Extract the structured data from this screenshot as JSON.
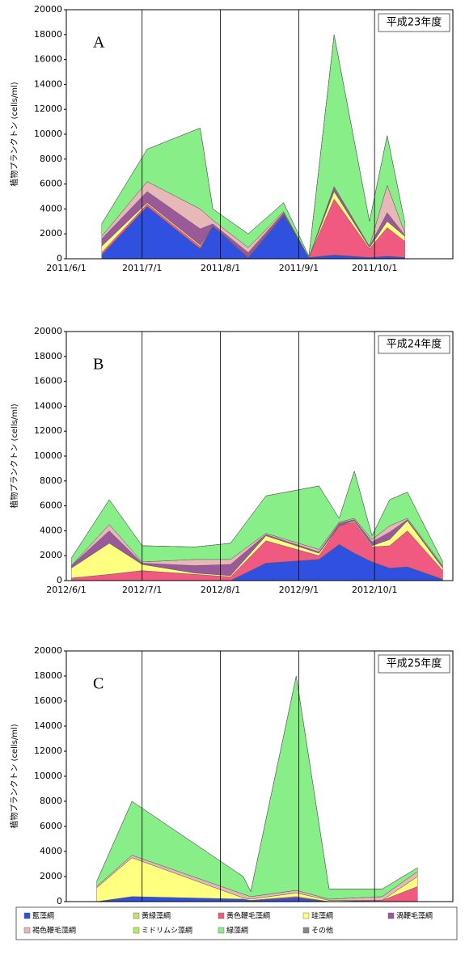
{
  "chart_data": [
    {
      "type": "stacked_area",
      "title": "平成23年度",
      "panel_label": "A",
      "ylabel": "植物プランクトン (cells/ml)",
      "x": [
        "2011-06-15",
        "2011-07-03",
        "2011-07-24",
        "2011-07-29",
        "2011-08-12",
        "2011-08-26",
        "2011-09-05",
        "2011-09-15",
        "2011-09-29",
        "2011-10-06",
        "2011-10-13"
      ],
      "xlim": [
        "2011-06-01",
        "2011-11-01"
      ],
      "xticks": [
        {
          "value": "2011-06-01",
          "label": "2011/6/1"
        },
        {
          "value": "2011-07-01",
          "label": "2011/7/1"
        },
        {
          "value": "2011-08-01",
          "label": "2011/8/1"
        },
        {
          "value": "2011-09-01",
          "label": "2011/9/1"
        },
        {
          "value": "2011-10-01",
          "label": "2011/10/1"
        }
      ],
      "ylim": [
        0,
        20000
      ],
      "yticks": [
        0,
        2000,
        4000,
        6000,
        8000,
        10000,
        12000,
        14000,
        16000,
        18000,
        20000
      ],
      "grid": "x",
      "series": [
        {
          "name": "藍藻綱",
          "color": "#3050e0",
          "values": [
            300,
            4200,
            800,
            2600,
            100,
            3500,
            100,
            300,
            100,
            200,
            100
          ]
        },
        {
          "name": "黄緑藻綱",
          "color": "#c8e070",
          "values": [
            0,
            0,
            0,
            0,
            0,
            0,
            0,
            0,
            0,
            0,
            0
          ]
        },
        {
          "name": "黄色鞭毛藻綱",
          "color": "#f05a80",
          "values": [
            200,
            200,
            200,
            0,
            100,
            100,
            0,
            4500,
            700,
            2300,
            1300
          ]
        },
        {
          "name": "珪藻綱",
          "color": "#ffff80",
          "values": [
            500,
            100,
            100,
            0,
            0,
            0,
            0,
            600,
            100,
            500,
            400
          ]
        },
        {
          "name": "渦鞭毛藻綱",
          "color": "#9a5a9a",
          "values": [
            600,
            900,
            1300,
            200,
            300,
            100,
            0,
            300,
            100,
            700,
            100
          ]
        },
        {
          "name": "褐色鞭毛藻綱",
          "color": "#e8b8b8",
          "values": [
            200,
            800,
            1600,
            300,
            400,
            100,
            0,
            100,
            0,
            2200,
            200
          ]
        },
        {
          "name": "ミドリムシ藻綱",
          "color": "#b0f060",
          "values": [
            0,
            0,
            0,
            0,
            0,
            0,
            0,
            0,
            0,
            0,
            0
          ]
        },
        {
          "name": "緑藻綱",
          "color": "#88ee88",
          "values": [
            1000,
            2600,
            6500,
            900,
            1100,
            700,
            100,
            12200,
            2000,
            4000,
            800
          ]
        },
        {
          "name": "その他",
          "color": "#888888",
          "values": [
            0,
            0,
            0,
            0,
            0,
            0,
            0,
            0,
            0,
            0,
            0
          ]
        }
      ]
    },
    {
      "type": "stacked_area",
      "title": "平成24年度",
      "panel_label": "B",
      "ylabel": "植物プランクトン (cells/ml)",
      "x": [
        "2012-06-03",
        "2012-06-18",
        "2012-07-01",
        "2012-07-22",
        "2012-08-05",
        "2012-08-19",
        "2012-09-09",
        "2012-09-17",
        "2012-09-23",
        "2012-09-30",
        "2012-10-07",
        "2012-10-14",
        "2012-10-28"
      ],
      "xlim": [
        "2012-06-01",
        "2012-11-01"
      ],
      "xticks": [
        {
          "value": "2012-06-01",
          "label": "2012/6/1"
        },
        {
          "value": "2012-07-01",
          "label": "2012/7/1"
        },
        {
          "value": "2012-08-01",
          "label": "2012/8/1"
        },
        {
          "value": "2012-09-01",
          "label": "2012/9/1"
        },
        {
          "value": "2012-10-01",
          "label": "2012/10/1"
        }
      ],
      "ylim": [
        0,
        20000
      ],
      "yticks": [
        0,
        2000,
        4000,
        6000,
        8000,
        10000,
        12000,
        14000,
        16000,
        18000,
        20000
      ],
      "grid": "x",
      "series": [
        {
          "name": "藍藻綱",
          "color": "#3050e0",
          "values": [
            0,
            0,
            0,
            0,
            0,
            1400,
            1700,
            2900,
            2200,
            1500,
            1000,
            1100,
            100
          ]
        },
        {
          "name": "黄緑藻綱",
          "color": "#c8e070",
          "values": [
            0,
            0,
            0,
            0,
            0,
            0,
            0,
            0,
            0,
            0,
            0,
            0,
            0
          ]
        },
        {
          "name": "黄色鞭毛藻綱",
          "color": "#f05a80",
          "values": [
            200,
            500,
            800,
            500,
            300,
            1800,
            300,
            1500,
            2500,
            1200,
            1800,
            2900,
            700
          ]
        },
        {
          "name": "珪藻綱",
          "color": "#ffff80",
          "values": [
            800,
            2500,
            500,
            100,
            100,
            400,
            200,
            0,
            100,
            100,
            500,
            800,
            200
          ]
        },
        {
          "name": "渦鞭毛藻綱",
          "color": "#9a5a9a",
          "values": [
            200,
            1000,
            100,
            600,
            900,
            100,
            100,
            200,
            100,
            300,
            600,
            100,
            100
          ]
        },
        {
          "name": "褐色鞭毛藻綱",
          "color": "#e8b8b8",
          "values": [
            0,
            500,
            100,
            500,
            400,
            100,
            200,
            100,
            100,
            200,
            500,
            100,
            100
          ]
        },
        {
          "name": "ミドリムシ藻綱",
          "color": "#b0f060",
          "values": [
            0,
            0,
            0,
            0,
            0,
            0,
            0,
            0,
            0,
            0,
            0,
            0,
            0
          ]
        },
        {
          "name": "緑藻綱",
          "color": "#88ee88",
          "values": [
            600,
            2000,
            1300,
            1000,
            1300,
            3000,
            5100,
            300,
            3800,
            300,
            2100,
            2100,
            300
          ]
        },
        {
          "name": "その他",
          "color": "#888888",
          "values": [
            0,
            0,
            0,
            0,
            0,
            0,
            0,
            0,
            0,
            0,
            0,
            0,
            0
          ]
        }
      ]
    },
    {
      "type": "stacked_area",
      "title": "平成25年度",
      "panel_label": "C",
      "ylabel": "植物プランクトン (cells/ml)",
      "x": [
        "2013-06-13",
        "2013-06-27",
        "2013-08-10",
        "2013-08-13",
        "2013-08-31",
        "2013-09-13",
        "2013-10-04",
        "2013-10-18"
      ],
      "xlim": [
        "2013-06-01",
        "2013-11-01"
      ],
      "xticks": [
        {
          "value": "2013-06-01",
          "label": "2013/6/1"
        },
        {
          "value": "2013-07-01",
          "label": "2013/7/1"
        },
        {
          "value": "2013-08-01",
          "label": "2013/8/1"
        },
        {
          "value": "2013-09-01",
          "label": "2013/9/1"
        },
        {
          "value": "2013-10-01",
          "label": "2013/10/1"
        }
      ],
      "ylim": [
        0,
        20000
      ],
      "yticks": [
        0,
        2000,
        4000,
        6000,
        8000,
        10000,
        12000,
        14000,
        16000,
        18000,
        20000
      ],
      "grid": "x",
      "series": [
        {
          "name": "藍藻綱",
          "color": "#3050e0",
          "values": [
            0,
            400,
            200,
            100,
            300,
            0,
            0,
            0
          ]
        },
        {
          "name": "黄緑藻綱",
          "color": "#c8e070",
          "values": [
            0,
            0,
            0,
            0,
            0,
            0,
            0,
            0
          ]
        },
        {
          "name": "黄色鞭毛藻綱",
          "color": "#f05a80",
          "values": [
            0,
            0,
            0,
            0,
            100,
            0,
            100,
            1200
          ]
        },
        {
          "name": "珪藻綱",
          "color": "#ffff80",
          "values": [
            1100,
            3100,
            100,
            100,
            300,
            100,
            0,
            800
          ]
        },
        {
          "name": "渦鞭毛藻綱",
          "color": "#9a5a9a",
          "values": [
            0,
            0,
            0,
            0,
            0,
            0,
            0,
            0
          ]
        },
        {
          "name": "褐色鞭毛藻綱",
          "color": "#e8b8b8",
          "values": [
            100,
            200,
            300,
            200,
            200,
            100,
            300,
            400
          ]
        },
        {
          "name": "ミドリムシ藻綱",
          "color": "#b0f060",
          "values": [
            0,
            0,
            0,
            0,
            0,
            0,
            0,
            0
          ]
        },
        {
          "name": "緑藻綱",
          "color": "#88ee88",
          "values": [
            400,
            4300,
            1400,
            400,
            17100,
            800,
            600,
            300
          ]
        },
        {
          "name": "その他",
          "color": "#888888",
          "values": [
            0,
            0,
            0,
            0,
            0,
            0,
            0,
            0
          ]
        }
      ]
    }
  ]
}
